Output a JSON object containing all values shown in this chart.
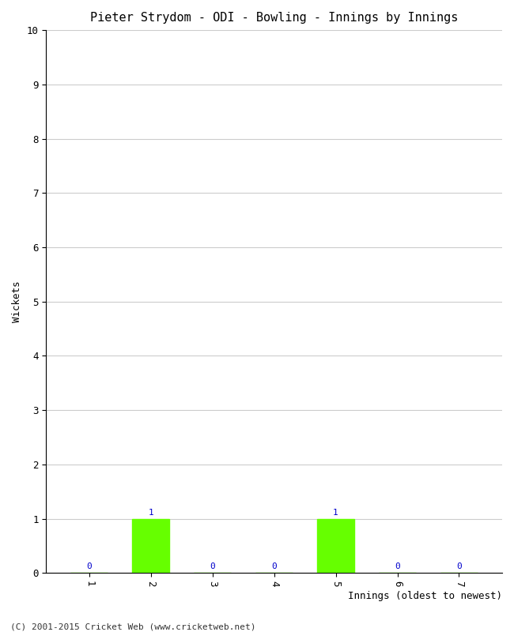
{
  "title": "Pieter Strydom - ODI - Bowling - Innings by Innings",
  "xlabel": "Innings (oldest to newest)",
  "ylabel": "Wickets",
  "categories": [
    "1",
    "2",
    "3",
    "4",
    "5",
    "6",
    "7"
  ],
  "values": [
    0,
    1,
    0,
    0,
    1,
    0,
    0
  ],
  "bar_color": "#66ff00",
  "bar_edge_color": "#66ff00",
  "ylim": [
    0,
    10
  ],
  "yticks": [
    0,
    1,
    2,
    3,
    4,
    5,
    6,
    7,
    8,
    9,
    10
  ],
  "background_color": "#ffffff",
  "grid_color": "#cccccc",
  "label_color": "#0000cc",
  "title_fontsize": 11,
  "axis_fontsize": 9,
  "tick_fontsize": 9,
  "label_fontsize": 8,
  "footer": "(C) 2001-2015 Cricket Web (www.cricketweb.net)"
}
